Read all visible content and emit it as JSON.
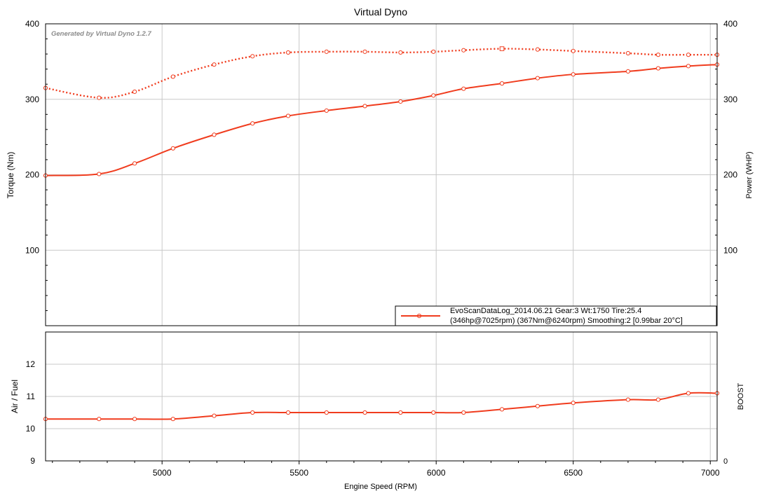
{
  "app": {
    "title": "Virtual Dyno",
    "watermark": "Generated by Virtual Dyno 1.2.7"
  },
  "colors": {
    "series": "#f03c1e",
    "grid": "#c8c8c8",
    "frame": "#000000",
    "text": "#000000",
    "watermark": "#8c8c8c"
  },
  "chart_data": [
    {
      "id": "power-torque",
      "type": "line",
      "title": "Virtual Dyno",
      "xlabel": "Engine Speed (RPM)",
      "ylabel_left": "Torque (Nm)",
      "ylabel_right": "Power (WHP)",
      "xlim": [
        4575,
        7025
      ],
      "ylim": [
        0,
        400
      ],
      "y_ticks": [
        100,
        200,
        300,
        400
      ],
      "grid": true,
      "legend": {
        "placement": "bottom-right",
        "line1": "EvoScanDataLog_2014.06.21 Gear:3 Wt:1750 Tire:25.4",
        "line2": "(346hp@7025rpm) (367Nm@6240rpm) Smoothing:2 [0.99bar 20°C]"
      },
      "series": [
        {
          "style": "solid",
          "x": [
            4575,
            4770,
            4900,
            5040,
            5190,
            5330,
            5460,
            5600,
            5740,
            5870,
            5990,
            6100,
            6240,
            6370,
            6500,
            6700,
            6810,
            6920,
            7025
          ],
          "values": [
            199,
            201,
            215,
            235,
            253,
            268,
            278,
            285,
            291,
            297,
            305,
            314,
            321,
            328,
            333,
            337,
            341,
            344,
            346
          ]
        },
        {
          "style": "dotted",
          "x": [
            4575,
            4770,
            4900,
            5040,
            5190,
            5330,
            5460,
            5600,
            5740,
            5870,
            5990,
            6100,
            6240,
            6370,
            6500,
            6700,
            6810,
            6920,
            7025
          ],
          "values": [
            315,
            302,
            310,
            330,
            346,
            357,
            362,
            363,
            363,
            362,
            363,
            365,
            367,
            366,
            364,
            361,
            359,
            359,
            359
          ],
          "peak_x": 6240
        }
      ]
    },
    {
      "id": "air-fuel",
      "type": "line",
      "ylabel_left": "Air / Fuel",
      "ylabel_right": "BOOST",
      "xlim": [
        4575,
        7025
      ],
      "ylim": [
        9,
        13
      ],
      "y_ticks": [
        9,
        10,
        11,
        12
      ],
      "right_tick_label": "0",
      "x_ticks": [
        5000,
        5500,
        6000,
        6500,
        7000
      ],
      "xlabel": "Engine Speed (RPM)",
      "grid": true,
      "series": [
        {
          "style": "solid",
          "x": [
            4575,
            4770,
            4900,
            5040,
            5190,
            5330,
            5460,
            5600,
            5740,
            5870,
            5990,
            6100,
            6240,
            6370,
            6500,
            6700,
            6810,
            6920,
            7025
          ],
          "values": [
            10.3,
            10.3,
            10.3,
            10.3,
            10.4,
            10.5,
            10.5,
            10.5,
            10.5,
            10.5,
            10.5,
            10.5,
            10.6,
            10.7,
            10.8,
            10.9,
            10.9,
            11.1,
            11.1
          ]
        }
      ]
    }
  ]
}
